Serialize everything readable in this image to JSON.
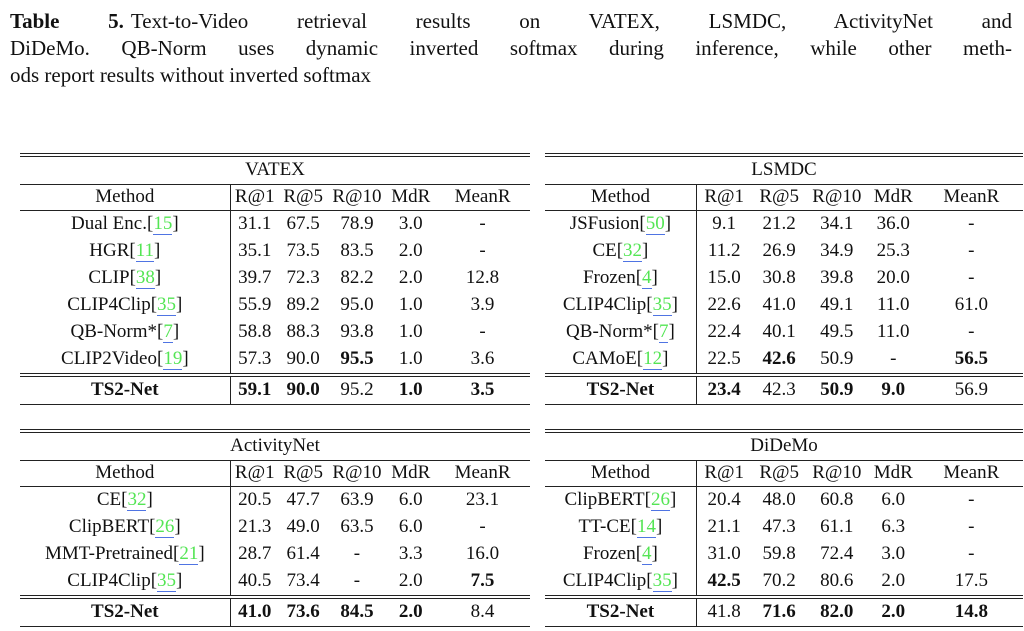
{
  "caption": {
    "label": "Table 5.",
    "line1_rest": "Text-to-Video retrieval results on VATEX, LSMDC, ActivityNet and",
    "line2": "DiDeMo. QB-Norm uses dynamic inverted softmax during inference, while other meth-",
    "line3": "ods report results without inverted softmax"
  },
  "columns": [
    "Method",
    "R@1",
    "R@5",
    "R@10",
    "MdR",
    "MeanR"
  ],
  "colors": {
    "citation_green": "#54e554",
    "citation_underline_blue": "#4f74e3",
    "rule_color": "#222222",
    "text_color": "#111111"
  },
  "tables": [
    {
      "title": "VATEX",
      "rows": [
        {
          "method": "Dual Enc.",
          "cite": "15",
          "values": [
            "31.1",
            "67.5",
            "78.9",
            "3.0",
            "-"
          ],
          "bold": [
            false,
            false,
            false,
            false,
            false
          ]
        },
        {
          "method": "HGR",
          "cite": "11",
          "values": [
            "35.1",
            "73.5",
            "83.5",
            "2.0",
            "-"
          ],
          "bold": [
            false,
            false,
            false,
            false,
            false
          ]
        },
        {
          "method": "CLIP",
          "cite": "38",
          "values": [
            "39.7",
            "72.3",
            "82.2",
            "2.0",
            "12.8"
          ],
          "bold": [
            false,
            false,
            false,
            false,
            false
          ]
        },
        {
          "method": "CLIP4Clip",
          "cite": "35",
          "values": [
            "55.9",
            "89.2",
            "95.0",
            "1.0",
            "3.9"
          ],
          "bold": [
            false,
            false,
            false,
            false,
            false
          ]
        },
        {
          "method": "QB-Norm*",
          "cite": "7",
          "values": [
            "58.8",
            "88.3",
            "93.8",
            "1.0",
            "-"
          ],
          "bold": [
            false,
            false,
            false,
            false,
            false
          ]
        },
        {
          "method": "CLIP2Video",
          "cite": "19",
          "values": [
            "57.3",
            "90.0",
            "95.5",
            "1.0",
            "3.6"
          ],
          "bold": [
            false,
            false,
            true,
            false,
            false
          ]
        },
        {
          "method": "TS2-Net",
          "cite": null,
          "final": true,
          "values": [
            "59.1",
            "90.0",
            "95.2",
            "1.0",
            "3.5"
          ],
          "bold": [
            true,
            true,
            false,
            true,
            true
          ]
        }
      ]
    },
    {
      "title": "LSMDC",
      "rows": [
        {
          "method": "JSFusion",
          "cite": "50",
          "values": [
            "9.1",
            "21.2",
            "34.1",
            "36.0",
            "-"
          ],
          "bold": [
            false,
            false,
            false,
            false,
            false
          ]
        },
        {
          "method": "CE",
          "cite": "32",
          "values": [
            "11.2",
            "26.9",
            "34.9",
            "25.3",
            "-"
          ],
          "bold": [
            false,
            false,
            false,
            false,
            false
          ]
        },
        {
          "method": "Frozen",
          "cite": "4",
          "values": [
            "15.0",
            "30.8",
            "39.8",
            "20.0",
            "-"
          ],
          "bold": [
            false,
            false,
            false,
            false,
            false
          ]
        },
        {
          "method": "CLIP4Clip",
          "cite": "35",
          "values": [
            "22.6",
            "41.0",
            "49.1",
            "11.0",
            "61.0"
          ],
          "bold": [
            false,
            false,
            false,
            false,
            false
          ]
        },
        {
          "method": "QB-Norm*",
          "cite": "7",
          "values": [
            "22.4",
            "40.1",
            "49.5",
            "11.0",
            "-"
          ],
          "bold": [
            false,
            false,
            false,
            false,
            false
          ]
        },
        {
          "method": "CAMoE",
          "cite": "12",
          "values": [
            "22.5",
            "42.6",
            "50.9",
            "-",
            "56.5"
          ],
          "bold": [
            false,
            true,
            false,
            false,
            true
          ]
        },
        {
          "method": "TS2-Net",
          "cite": null,
          "final": true,
          "values": [
            "23.4",
            "42.3",
            "50.9",
            "9.0",
            "56.9"
          ],
          "bold": [
            true,
            false,
            true,
            true,
            false
          ]
        }
      ]
    },
    {
      "title": "ActivityNet",
      "rows": [
        {
          "method": "CE",
          "cite": "32",
          "values": [
            "20.5",
            "47.7",
            "63.9",
            "6.0",
            "23.1"
          ],
          "bold": [
            false,
            false,
            false,
            false,
            false
          ]
        },
        {
          "method": "ClipBERT",
          "cite": "26",
          "values": [
            "21.3",
            "49.0",
            "63.5",
            "6.0",
            "-"
          ],
          "bold": [
            false,
            false,
            false,
            false,
            false
          ]
        },
        {
          "method": "MMT-Pretrained",
          "cite": "21",
          "values": [
            "28.7",
            "61.4",
            "-",
            "3.3",
            "16.0"
          ],
          "bold": [
            false,
            false,
            false,
            false,
            false
          ]
        },
        {
          "method": "CLIP4Clip",
          "cite": "35",
          "values": [
            "40.5",
            "73.4",
            "-",
            "2.0",
            "7.5"
          ],
          "bold": [
            false,
            false,
            false,
            false,
            true
          ]
        },
        {
          "method": "TS2-Net",
          "cite": null,
          "final": true,
          "values": [
            "41.0",
            "73.6",
            "84.5",
            "2.0",
            "8.4"
          ],
          "bold": [
            true,
            true,
            true,
            true,
            false
          ]
        }
      ]
    },
    {
      "title": "DiDeMo",
      "rows": [
        {
          "method": "ClipBERT",
          "cite": "26",
          "values": [
            "20.4",
            "48.0",
            "60.8",
            "6.0",
            "-"
          ],
          "bold": [
            false,
            false,
            false,
            false,
            false
          ]
        },
        {
          "method": "TT-CE",
          "cite": "14",
          "values": [
            "21.1",
            "47.3",
            "61.1",
            "6.3",
            "-"
          ],
          "bold": [
            false,
            false,
            false,
            false,
            false
          ]
        },
        {
          "method": "Frozen",
          "cite": "4",
          "values": [
            "31.0",
            "59.8",
            "72.4",
            "3.0",
            "-"
          ],
          "bold": [
            false,
            false,
            false,
            false,
            false
          ]
        },
        {
          "method": "CLIP4Clip",
          "cite": "35",
          "values": [
            "42.5",
            "70.2",
            "80.6",
            "2.0",
            "17.5"
          ],
          "bold": [
            true,
            false,
            false,
            false,
            false
          ]
        },
        {
          "method": "TS2-Net",
          "cite": null,
          "final": true,
          "values": [
            "41.8",
            "71.6",
            "82.0",
            "2.0",
            "14.8"
          ],
          "bold": [
            false,
            true,
            true,
            true,
            true
          ]
        }
      ]
    }
  ]
}
